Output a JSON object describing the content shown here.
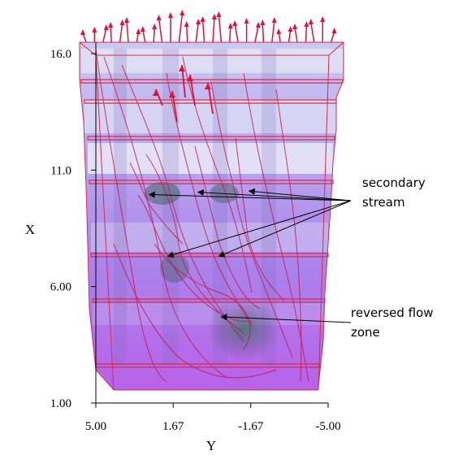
{
  "chart_data": {
    "type": "3d-flow-visualization",
    "xlabel": "Y",
    "ylabel": "X",
    "x_ticks": [
      "5.00",
      "1.67",
      "-1.67",
      "-5.00"
    ],
    "y_ticks": [
      "16.0",
      "11.0",
      "6.00",
      "1.00"
    ],
    "xlim": [
      5.0,
      -5.0
    ],
    "ylim": [
      1.0,
      16.0
    ],
    "annotations": [
      {
        "text": [
          "secondary",
          "stream"
        ],
        "targets": [
          [
            2.7,
            9.95
          ],
          [
            0.6,
            10.05
          ],
          [
            -1.6,
            10.1
          ],
          [
            1.9,
            7.3
          ],
          [
            -0.3,
            7.3
          ]
        ]
      },
      {
        "text": [
          "reversed flow",
          "zone"
        ],
        "targets": [
          [
            -0.4,
            4.7
          ]
        ]
      }
    ],
    "colors": {
      "volume_light": "#dfe0f4",
      "volume_mid": "#b6a2ee",
      "volume_dark": "#a64ce6",
      "streamline": "#c0104a",
      "arrow": "#e0103a",
      "frame": "#d82a4a"
    }
  }
}
